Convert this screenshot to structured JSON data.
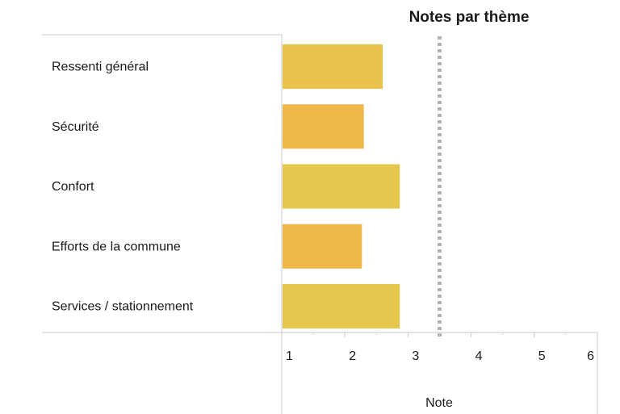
{
  "chart_data": {
    "type": "bar",
    "orientation": "horizontal",
    "title": "Notes par thème",
    "xlabel": "Note",
    "ylabel": "",
    "xlim": [
      1,
      6
    ],
    "xticks": [
      1,
      2,
      3,
      4,
      5,
      6
    ],
    "reference_line": {
      "value": 3.5,
      "style": "dotted",
      "color": "#b3b3b3"
    },
    "categories": [
      "Ressenti général",
      "Sécurité",
      "Confort",
      "Efforts de la commune",
      "Services  /  stationnement"
    ],
    "values": [
      2.6,
      2.3,
      2.87,
      2.27,
      2.87
    ],
    "bar_colors": [
      "#e8c24a",
      "#f0b84a",
      "#e5c74e",
      "#f0b84a",
      "#e5c74e"
    ],
    "grid": false,
    "legend": "none"
  }
}
